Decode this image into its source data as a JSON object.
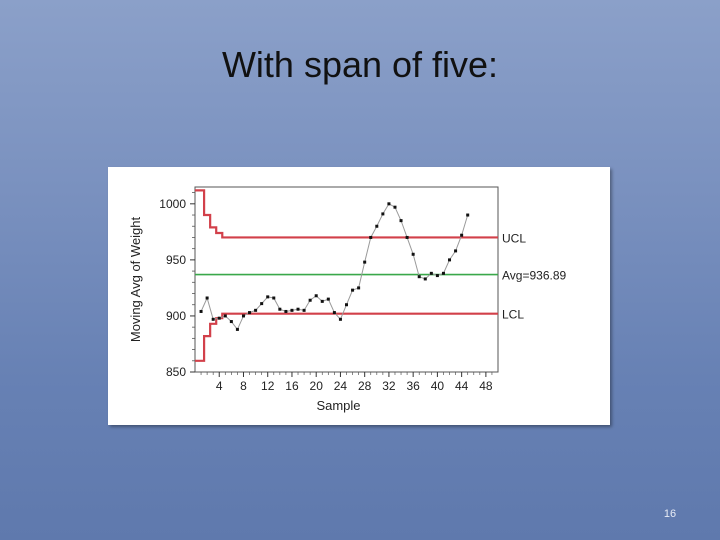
{
  "slide": {
    "title": "With span of five:",
    "page_number": "16"
  },
  "colors": {
    "limit_line": "#d2404a",
    "avg_line": "#3aa84a",
    "series_line": "#9a9a9a",
    "series_point": "#111111"
  },
  "chart_data": {
    "type": "line",
    "title": "",
    "xlabel": "Sample",
    "ylabel": "Moving Avg of Weight",
    "x_ticks": [
      4,
      8,
      12,
      16,
      20,
      24,
      28,
      32,
      36,
      40,
      44,
      48
    ],
    "y_ticks": [
      850,
      900,
      950,
      1000
    ],
    "xlim": [
      0,
      50
    ],
    "ylim": [
      850,
      1015
    ],
    "series": [
      {
        "x": [
          1,
          2,
          3,
          4,
          5,
          6,
          7,
          8,
          9,
          10,
          11,
          12,
          13,
          14,
          15,
          16,
          17,
          18,
          19,
          20,
          21,
          22,
          23,
          24,
          25,
          26,
          27,
          28,
          29,
          30,
          31,
          32,
          33,
          34,
          35,
          36,
          37,
          38,
          39,
          40,
          41,
          42,
          43,
          44,
          45
        ],
        "values": [
          904,
          916,
          897,
          898,
          900,
          895,
          888,
          900,
          903,
          905,
          911,
          917,
          916,
          906,
          904,
          905,
          906,
          905,
          914,
          918,
          913,
          915,
          903,
          897,
          910,
          923,
          925,
          948,
          970,
          980,
          991,
          1000,
          997,
          985,
          970,
          955,
          935,
          933,
          938,
          936,
          938,
          950,
          958,
          972,
          990
        ]
      }
    ],
    "ucl": {
      "label": "UCL",
      "final": 970,
      "steps": [
        [
          0,
          1012
        ],
        [
          1.5,
          990
        ],
        [
          2.5,
          979
        ],
        [
          3.5,
          974
        ],
        [
          4.5,
          970
        ]
      ]
    },
    "lcl": {
      "label": "LCL",
      "final": 902,
      "steps": [
        [
          0,
          860
        ],
        [
          1.5,
          882
        ],
        [
          2.5,
          893
        ],
        [
          3.5,
          898
        ],
        [
          4.5,
          902
        ]
      ]
    },
    "avg": {
      "label": "Avg=936.89",
      "value": 936.89
    },
    "grid": false
  }
}
